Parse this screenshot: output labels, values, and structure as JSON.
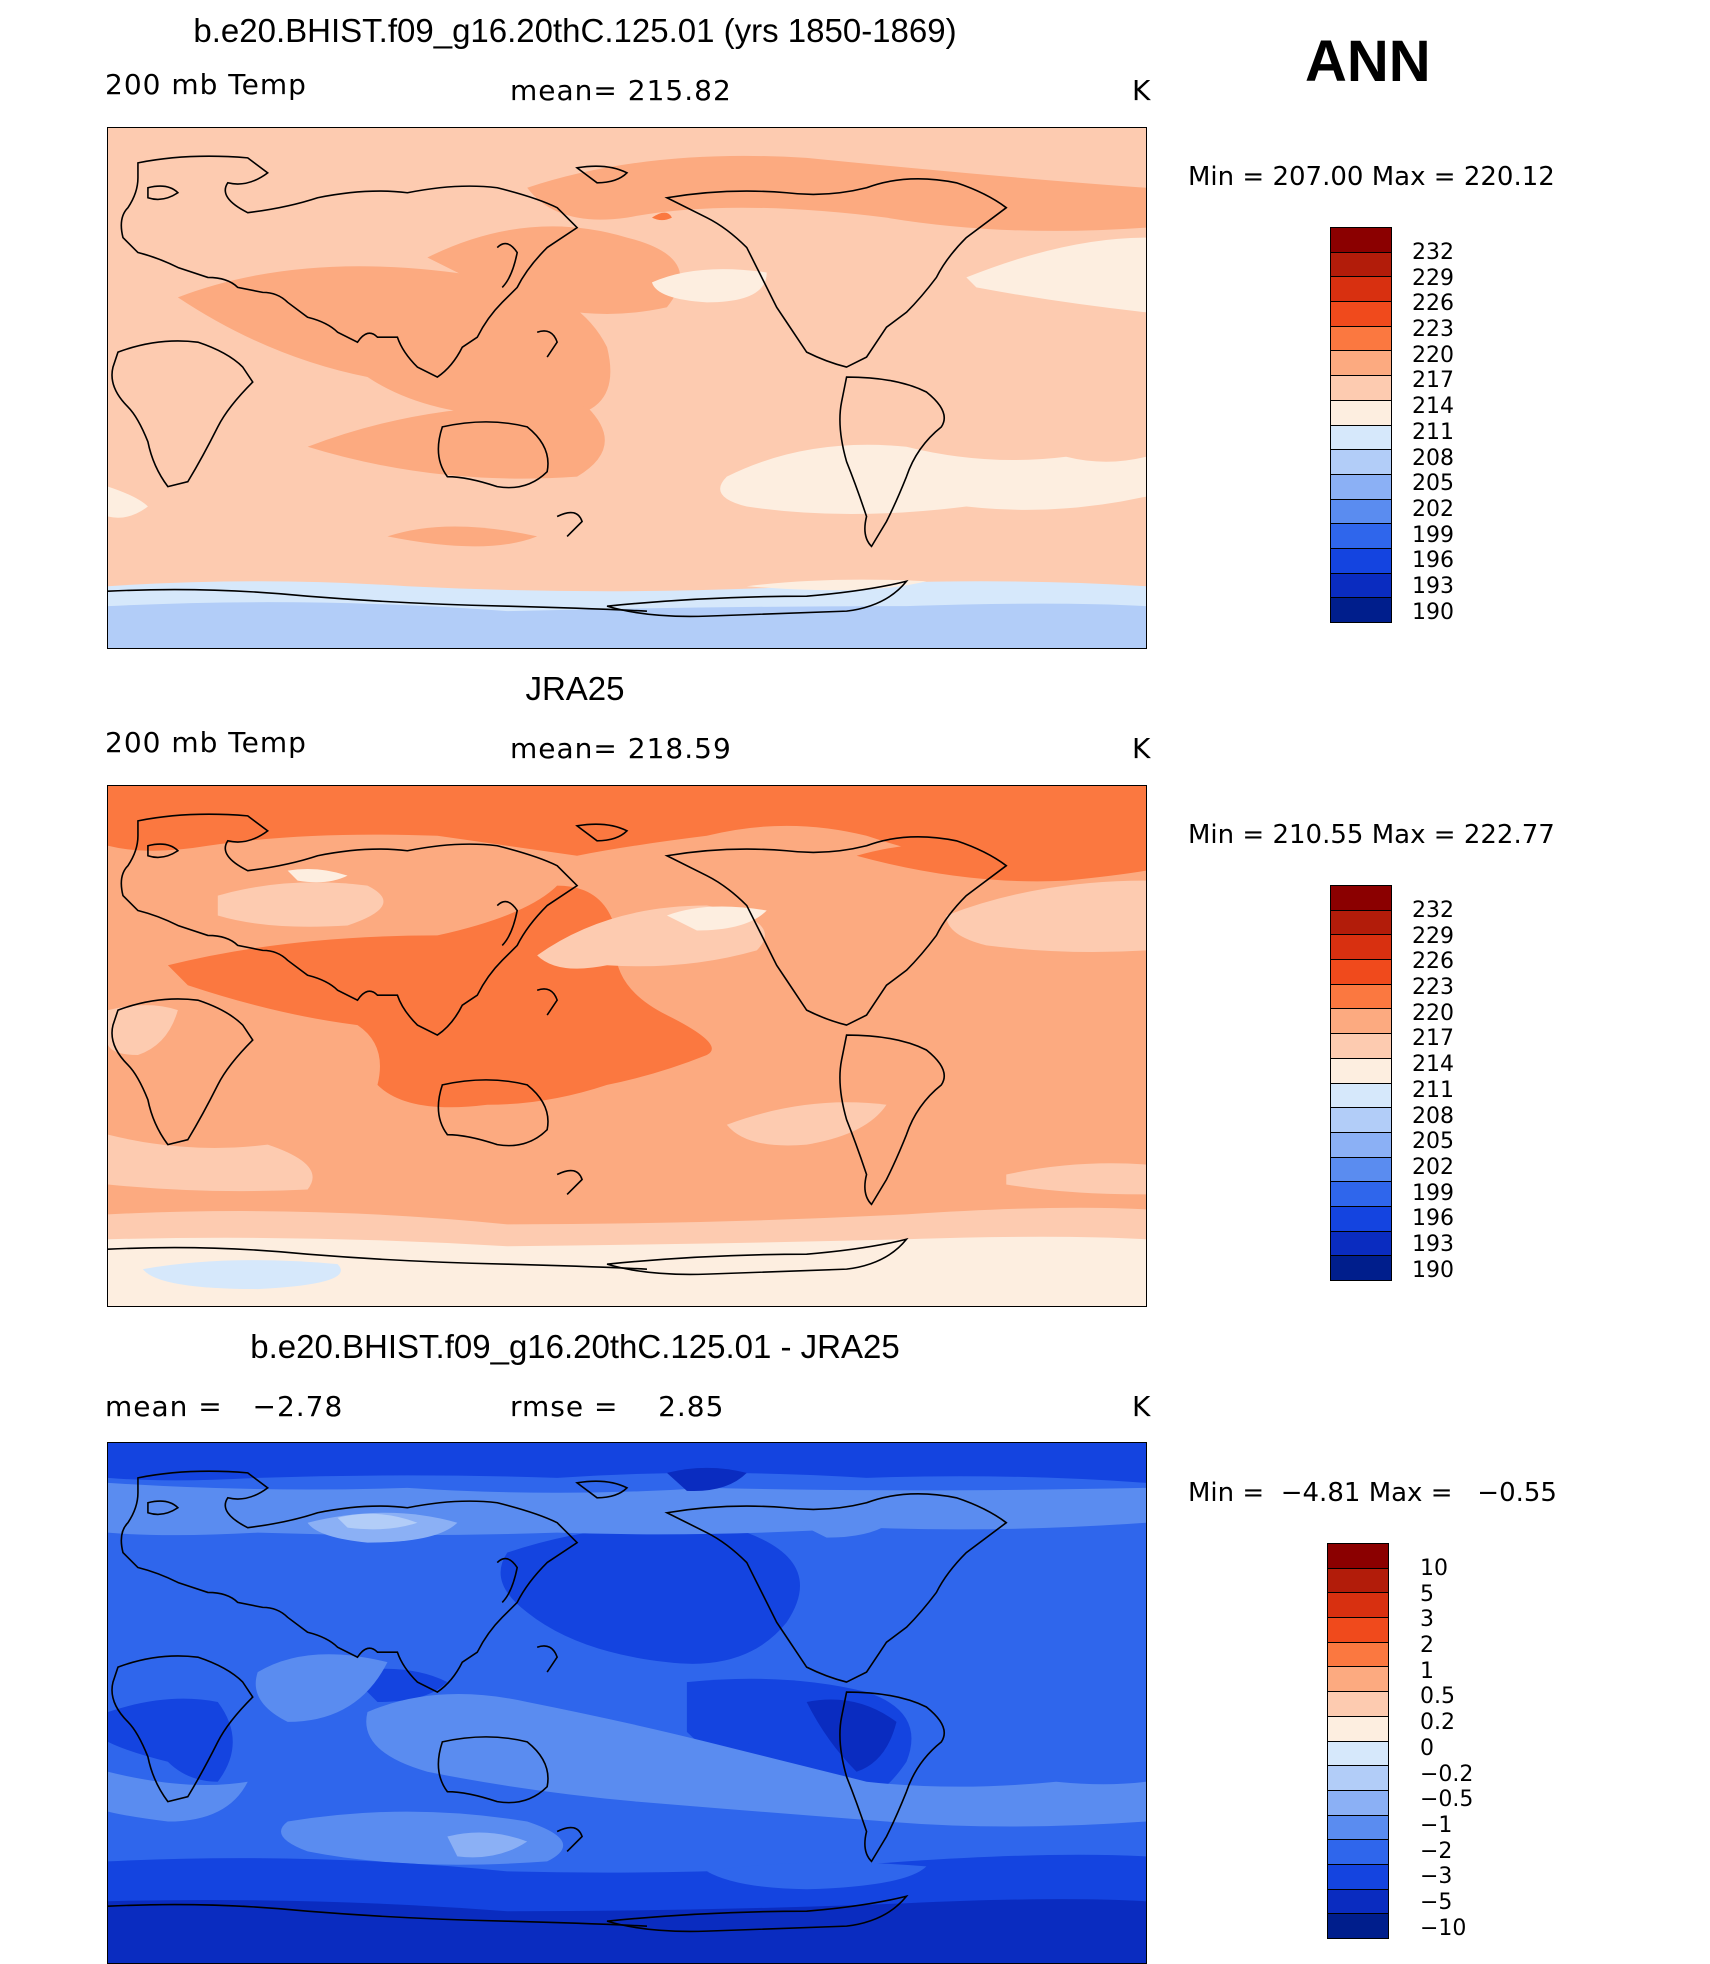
{
  "season": "ANN",
  "panels": [
    {
      "title": "b.e20.BHIST.f09_g16.20thC.125.01 (yrs 1850-1869)",
      "field_label": "200 mb Temp",
      "stat_label": "mean=",
      "stat_value": "215.82",
      "units": "K",
      "min_label": "Min",
      "min_value": "207.00",
      "max_label": "Max",
      "max_value": "220.12"
    },
    {
      "title": "JRA25",
      "field_label": "200 mb Temp",
      "stat_label": "mean=",
      "stat_value": "218.59",
      "units": "K",
      "min_label": "Min",
      "min_value": "210.55",
      "max_label": "Max",
      "max_value": "222.77"
    },
    {
      "title": "b.e20.BHIST.f09_g16.20thC.125.01 - JRA25",
      "mean_label": "mean =",
      "mean_value": "−2.78",
      "rmse_label": "rmse =",
      "rmse_value": "2.85",
      "units": "K",
      "min_label": "Min",
      "min_value": "−4.81",
      "max_label": "Max",
      "max_value": "−0.55"
    }
  ],
  "colorbar_abs": {
    "labels": [
      "232",
      "229",
      "226",
      "223",
      "220",
      "217",
      "214",
      "211",
      "208",
      "205",
      "202",
      "199",
      "196",
      "193",
      "190"
    ],
    "colors": [
      "#8b0000",
      "#b21c0a",
      "#d83010",
      "#f04a1c",
      "#fb7840",
      "#fcaa80",
      "#fdcbb0",
      "#fdeee0",
      "#d6e8fb",
      "#b2cdf8",
      "#8bb0f5",
      "#5a8cf0",
      "#2f66ec",
      "#1444e0",
      "#0a2cc0",
      "#001e8c"
    ]
  },
  "colorbar_diff": {
    "labels": [
      "10",
      "5",
      "3",
      "2",
      "1",
      "0.5",
      "0.2",
      "0",
      "−0.2",
      "−0.5",
      "−1",
      "−2",
      "−3",
      "−5",
      "−10"
    ],
    "colors": [
      "#8b0000",
      "#b21c0a",
      "#d83010",
      "#f04a1c",
      "#fb7840",
      "#fcaa80",
      "#fdcbb0",
      "#fdeee0",
      "#d6e8fb",
      "#b2cdf8",
      "#8bb0f5",
      "#5a8cf0",
      "#2f66ec",
      "#1444e0",
      "#0a2cc0",
      "#001e8c"
    ]
  }
}
